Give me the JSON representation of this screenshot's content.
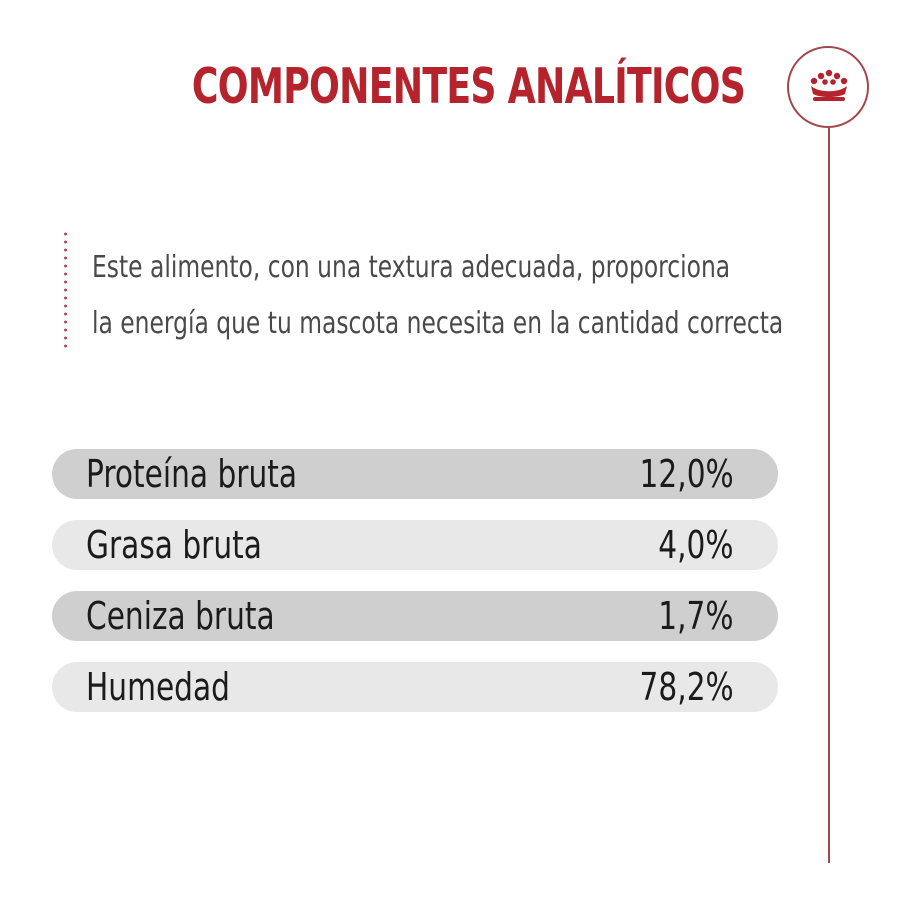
{
  "title": "COMPONENTES ANALÍTICOS",
  "description": {
    "line1": "Este alimento, con una textura adecuada, proporciona",
    "line2": "la energía que tu mascota necesita en la cantidad correcta"
  },
  "badge": {
    "icon": "crown-icon"
  },
  "nutrients": [
    {
      "label": "Proteína bruta",
      "value": "12,0%"
    },
    {
      "label": "Grasa bruta",
      "value": "4,0%"
    },
    {
      "label": "Ceniza bruta",
      "value": "1,7%"
    },
    {
      "label": "Humedad",
      "value": "78,2%"
    }
  ],
  "colors": {
    "accent": "#b5242d",
    "line": "#a5474a",
    "row_dark": "#cfcfd0",
    "row_light": "#e8e8e8",
    "text": "#1b1b1b",
    "muted_text": "#4a4a4a"
  }
}
